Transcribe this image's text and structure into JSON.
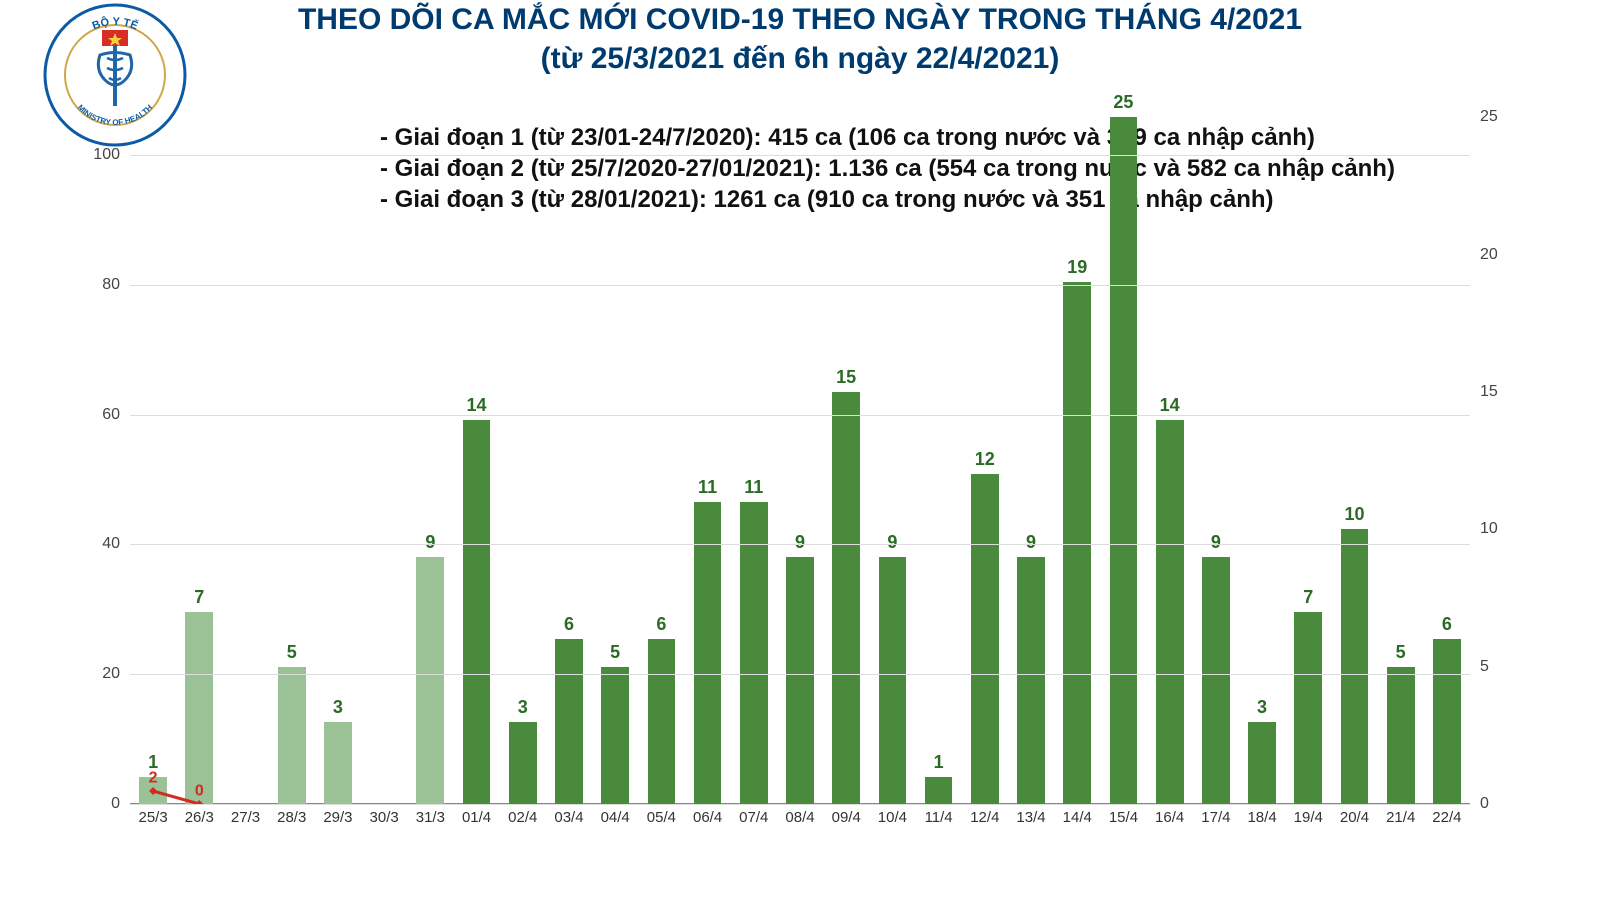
{
  "title": {
    "line1": "THEO DÕI CA MẮC MỚI COVID-19 THEO NGÀY TRONG THÁNG 4/2021",
    "line2": "(từ 25/3/2021 đến 6h ngày 22/4/2021)",
    "color": "#003b6f",
    "fontsize": 30
  },
  "logo": {
    "bg_color": "#ffffff",
    "ring_color": "#0b5aa6",
    "text_top": "BỘ Y TẾ",
    "text_bottom": "MINISTRY OF HEALTH",
    "ribbon_color": "#d0a84a",
    "flag_red": "#d82c27",
    "flag_star": "#f7d23e",
    "staff_color": "#1f65a8"
  },
  "notes": {
    "lines": [
      "- Giai đoạn 1 (từ 23/01-24/7/2020): 415 ca (106 ca trong nước và 309 ca nhập cảnh)",
      "- Giai đoạn 2 (từ 25/7/2020-27/01/2021): 1.136 ca (554 ca trong nước và 582 ca nhập cảnh)",
      "- Giai đoạn 3 (từ 28/01/2021): 1261 ca (910 ca trong nước và 351 ca nhập cảnh)"
    ],
    "color": "#111111",
    "fontsize": 24
  },
  "chart": {
    "type": "bar+line",
    "background_color": "#ffffff",
    "grid_color": "#dddddd",
    "categories": [
      "25/3",
      "26/3",
      "27/3",
      "28/3",
      "29/3",
      "30/3",
      "31/3",
      "01/4",
      "02/4",
      "03/4",
      "04/4",
      "05/4",
      "06/4",
      "07/4",
      "08/4",
      "09/4",
      "10/4",
      "11/4",
      "12/4",
      "13/4",
      "14/4",
      "15/4",
      "16/4",
      "17/4",
      "18/4",
      "19/4",
      "20/4",
      "21/4",
      "22/4"
    ],
    "bars": {
      "values": [
        1,
        7,
        0,
        5,
        3,
        0,
        9,
        14,
        3,
        6,
        5,
        6,
        11,
        11,
        9,
        15,
        9,
        1,
        12,
        9,
        19,
        25,
        14,
        9,
        3,
        7,
        10,
        5,
        6
      ],
      "colors": [
        "#9bc196",
        "#9bc196",
        "#9bc196",
        "#9bc196",
        "#9bc196",
        "#9bc196",
        "#9bc196",
        "#4a8a3c",
        "#4a8a3c",
        "#4a8a3c",
        "#4a8a3c",
        "#4a8a3c",
        "#4a8a3c",
        "#4a8a3c",
        "#4a8a3c",
        "#4a8a3c",
        "#4a8a3c",
        "#4a8a3c",
        "#4a8a3c",
        "#4a8a3c",
        "#4a8a3c",
        "#4a8a3c",
        "#4a8a3c",
        "#4a8a3c",
        "#4a8a3c",
        "#4a8a3c",
        "#4a8a3c",
        "#4a8a3c",
        "#4a8a3c"
      ],
      "label_color": "#2a6b25",
      "label_fontsize": 18,
      "bar_width": 0.6,
      "axis": "right"
    },
    "line": {
      "values": [
        2,
        0,
        null,
        null,
        null,
        null,
        null,
        null,
        null,
        null,
        null,
        null,
        null,
        null,
        null,
        null,
        null,
        null,
        null,
        null,
        null,
        null,
        null,
        null,
        null,
        null,
        null,
        null,
        null
      ],
      "color": "#d12a1f",
      "width": 3,
      "marker": "diamond",
      "marker_size": 8,
      "label_color": "#d12a1f",
      "label_fontsize": 16,
      "axis": "left"
    },
    "y_left": {
      "min": 0,
      "max": 110,
      "ticks": [
        0,
        20,
        40,
        60,
        80,
        100
      ],
      "fontsize": 16,
      "color": "#444444"
    },
    "y_right": {
      "min": 0,
      "max": 26,
      "ticks": [
        0,
        5,
        10,
        15,
        20,
        25
      ],
      "fontsize": 16,
      "color": "#444444"
    },
    "x_axis": {
      "fontsize": 15,
      "color": "#333333"
    }
  }
}
